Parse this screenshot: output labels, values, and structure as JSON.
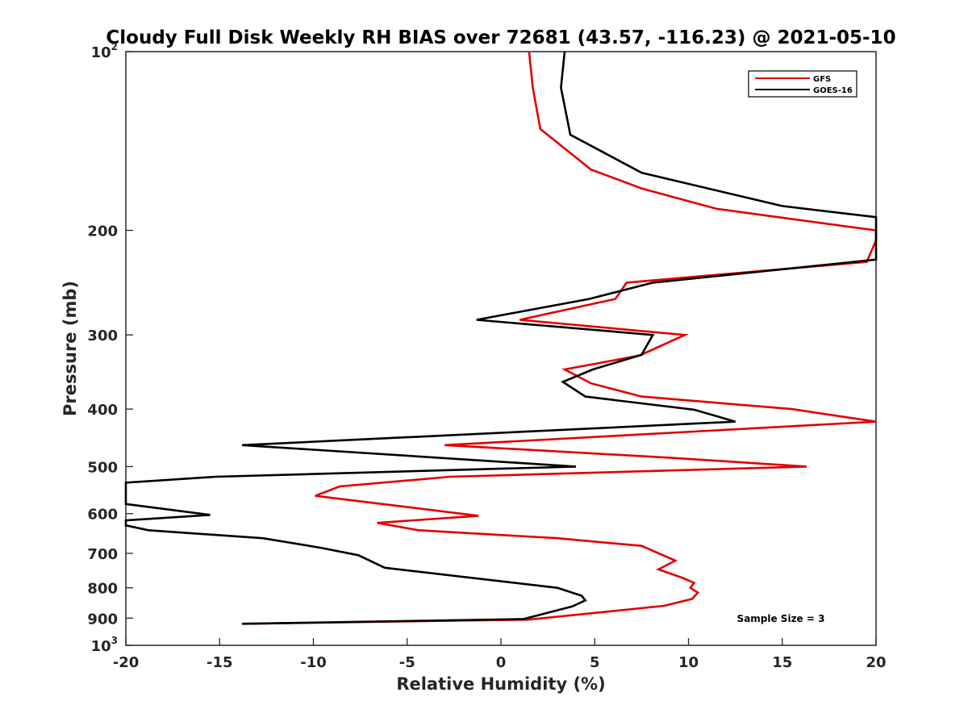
{
  "chart_data": {
    "type": "line",
    "title": "Cloudy Full Disk Weekly RH BIAS over 72681 (43.57, -116.23) @ 2021-05-10",
    "xlabel": "Relative Humidity (%)",
    "ylabel": "Pressure (mb)",
    "xlim": [
      -20,
      20
    ],
    "ylim": [
      100,
      1000
    ],
    "y_scale": "log",
    "y_reversed": true,
    "grid": false,
    "legend_position": "top-right",
    "x_ticks": [
      "-20",
      "-15",
      "-10",
      "-5",
      "0",
      "5",
      "10",
      "15",
      "20"
    ],
    "y_ticks": [
      {
        "value": 100,
        "base": "10",
        "exp": "2"
      },
      {
        "value": 200,
        "base": "200",
        "exp": ""
      },
      {
        "value": 300,
        "base": "300",
        "exp": ""
      },
      {
        "value": 400,
        "base": "400",
        "exp": ""
      },
      {
        "value": 500,
        "base": "500",
        "exp": ""
      },
      {
        "value": 600,
        "base": "600",
        "exp": ""
      },
      {
        "value": 700,
        "base": "700",
        "exp": ""
      },
      {
        "value": 800,
        "base": "800",
        "exp": ""
      },
      {
        "value": 900,
        "base": "900",
        "exp": ""
      },
      {
        "value": 1000,
        "base": "10",
        "exp": "3"
      }
    ],
    "annotation": "Sample Size = 3",
    "series": [
      {
        "name": "GFS",
        "color": "#e00000",
        "points": [
          [
            1.5,
            100
          ],
          [
            1.7,
            115
          ],
          [
            2.1,
            135
          ],
          [
            4.8,
            158
          ],
          [
            7.5,
            170
          ],
          [
            11.5,
            184
          ],
          [
            20.0,
            200
          ],
          [
            20.0,
            208
          ],
          [
            19.5,
            226
          ],
          [
            6.7,
            245
          ],
          [
            6.1,
            261
          ],
          [
            1.0,
            283
          ],
          [
            9.8,
            300
          ],
          [
            7.4,
            325
          ],
          [
            3.4,
            343
          ],
          [
            4.8,
            362
          ],
          [
            7.5,
            381
          ],
          [
            15.5,
            400
          ],
          [
            20.0,
            420
          ],
          [
            -3.0,
            460
          ],
          [
            9.0,
            483
          ],
          [
            16.3,
            500
          ],
          [
            -2.7,
            520
          ],
          [
            -8.6,
            540
          ],
          [
            -9.9,
            560
          ],
          [
            -5.0,
            585
          ],
          [
            -1.2,
            605
          ],
          [
            -6.6,
            622
          ],
          [
            -4.4,
            640
          ],
          [
            3.0,
            660
          ],
          [
            7.5,
            680
          ],
          [
            9.3,
            720
          ],
          [
            8.4,
            745
          ],
          [
            9.7,
            770
          ],
          [
            10.3,
            785
          ],
          [
            10.1,
            800
          ],
          [
            10.5,
            815
          ],
          [
            10.2,
            835
          ],
          [
            8.7,
            858
          ],
          [
            1.5,
            905
          ],
          [
            -13.8,
            920
          ]
        ]
      },
      {
        "name": "GOES-16",
        "color": "#000000",
        "points": [
          [
            3.4,
            100
          ],
          [
            3.2,
            115
          ],
          [
            3.7,
            138
          ],
          [
            7.5,
            160
          ],
          [
            15.0,
            182
          ],
          [
            20.0,
            190
          ],
          [
            20.0,
            224
          ],
          [
            8.1,
            245
          ],
          [
            4.7,
            261
          ],
          [
            -1.3,
            283
          ],
          [
            8.1,
            300
          ],
          [
            7.5,
            324
          ],
          [
            4.9,
            343
          ],
          [
            3.3,
            360
          ],
          [
            4.5,
            381
          ],
          [
            10.3,
            401
          ],
          [
            12.5,
            420
          ],
          [
            -13.8,
            460
          ],
          [
            4.0,
            500
          ],
          [
            -15.2,
            520
          ],
          [
            -20.0,
            532
          ],
          [
            -20.0,
            578
          ],
          [
            -15.5,
            603
          ],
          [
            -20.0,
            616
          ],
          [
            -20.0,
            628
          ],
          [
            -18.8,
            640
          ],
          [
            -12.7,
            660
          ],
          [
            -9.6,
            685
          ],
          [
            -7.6,
            705
          ],
          [
            -6.2,
            740
          ],
          [
            3.0,
            800
          ],
          [
            4.3,
            825
          ],
          [
            4.5,
            840
          ],
          [
            3.8,
            860
          ],
          [
            1.2,
            903
          ],
          [
            -13.8,
            920
          ]
        ]
      }
    ]
  }
}
